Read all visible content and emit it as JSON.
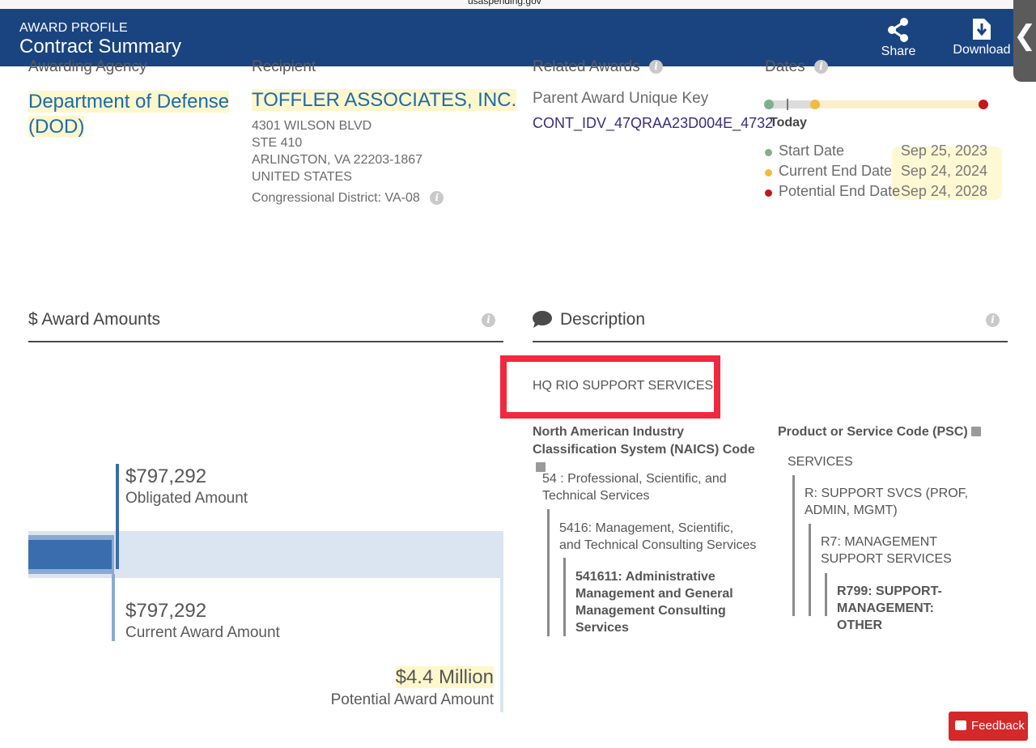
{
  "browser": {
    "url_fragment": "usaspending.gov"
  },
  "header": {
    "eyebrow": "AWARD PROFILE",
    "title": "Contract Summary",
    "share_label": "Share",
    "download_label": "Download",
    "side_tab_glyph": "❮",
    "background_color": "#1a4480"
  },
  "summary": {
    "awarding_agency": {
      "label": "Awarding Agency",
      "name": "Department of Defense (DOD)"
    },
    "recipient": {
      "label": "Recipient",
      "name": "TOFFLER ASSOCIATES, INC.",
      "address": [
        "4301 WILSON BLVD",
        "STE 410",
        "ARLINGTON, VA 22203-1867",
        "UNITED STATES"
      ],
      "congressional_district": "Congressional District: VA-08"
    },
    "related_awards": {
      "label": "Related Awards",
      "parent_label": "Parent Award Unique Key",
      "parent_key": "CONT_IDV_47QRAA23D004E_4732"
    },
    "dates": {
      "label": "Dates",
      "today_label": "Today",
      "today_position": 0.07,
      "rows": [
        {
          "label": "Start Date",
          "value": "Sep 25, 2023",
          "color": "#7fb08b"
        },
        {
          "label": "Current End Date",
          "value": "Sep 24, 2024",
          "color": "#f2bb3d"
        },
        {
          "label": "Potential End Date",
          "value": "Sep 24, 2028",
          "color": "#c4161c"
        }
      ]
    }
  },
  "award_amounts": {
    "title": "$ Award Amounts",
    "obligated": {
      "value": "$797,292",
      "label": "Obligated Amount"
    },
    "current": {
      "value": "$797,292",
      "label": "Current Award Amount"
    },
    "potential": {
      "value": "$4.4 Million",
      "label": "Potential Award Amount"
    },
    "bar_fill_fraction": 0.18,
    "colors": {
      "obligated": "#3a6dad",
      "current": "#8caad1",
      "potential": "#dbe5f1"
    }
  },
  "description": {
    "title": "Description",
    "text": "HQ RIO SUPPORT SERVICES",
    "naics": {
      "heading": "North American Industry Classification System (NAICS)  Code",
      "levels": [
        "54 : Professional, Scientific, and Technical Services",
        "5416: Management, Scientific, and Technical Consulting Services",
        "541611: Administrative Management and General Management Consulting Services"
      ]
    },
    "psc": {
      "heading": "Product or Service Code  (PSC)",
      "levels": [
        "SERVICES",
        "R: SUPPORT SVCS (PROF, ADMIN, MGMT)",
        "R7: MANAGEMENT SUPPORT SERVICES",
        "R799: SUPPORT- MANAGEMENT: OTHER"
      ]
    }
  },
  "feedback_label": "Feedback"
}
